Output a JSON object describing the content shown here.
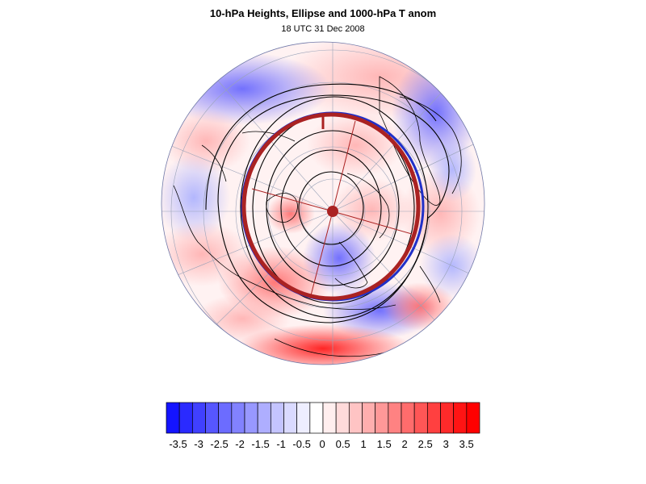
{
  "title": "10-hPa Heights, Ellipse and 1000-hPa T anom",
  "subtitle": "18 UTC 31 Dec 2008",
  "map": {
    "projection": "orthographic-north-polar",
    "field_shaded": "1000-hPa T anom",
    "field_contoured": "10-hPa Heights",
    "overlay": "Ellipse",
    "ellipse_color": "#aa2222",
    "centroid_color": "#aa2222",
    "contour_color": "#000000",
    "coastline_color": "#000000",
    "gridline_color": "#9aa3b8"
  },
  "colorbar": {
    "labels": [
      "-3.5",
      "-3",
      "-2.5",
      "-2",
      "-1.5",
      "-1",
      "-0.5",
      "0",
      "0.5",
      "1",
      "1.5",
      "2",
      "2.5",
      "3",
      "3.5"
    ],
    "colors": [
      "#1414ff",
      "#2a2aff",
      "#4040ff",
      "#5656ff",
      "#6c6cff",
      "#8282ff",
      "#9898ff",
      "#aeaeff",
      "#c4c4ff",
      "#dadaff",
      "#eeeeff",
      "#ffffff",
      "#ffeeee",
      "#ffdada",
      "#ffc4c4",
      "#ffaeae",
      "#ff9898",
      "#ff8282",
      "#ff6c6c",
      "#ff5656",
      "#ff4040",
      "#ff2a2a",
      "#ff1414",
      "#ff0000"
    ]
  }
}
